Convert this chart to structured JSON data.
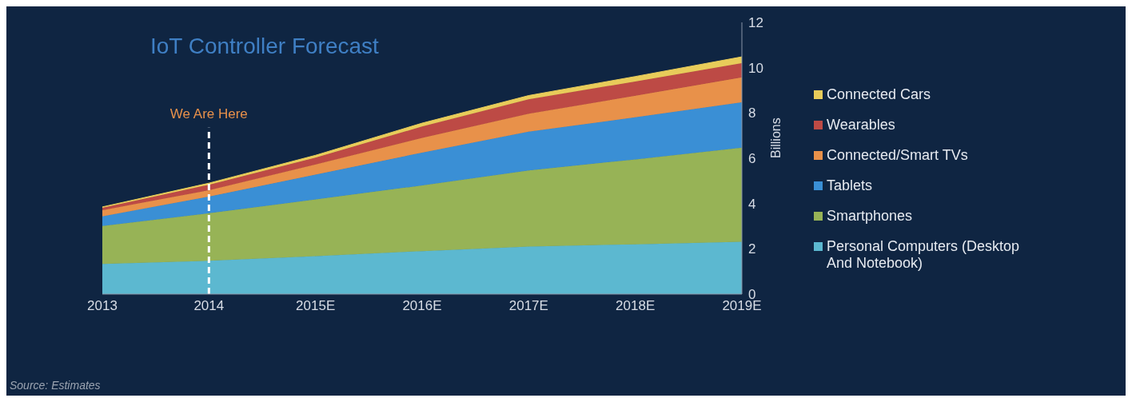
{
  "chart_data": {
    "type": "area",
    "title": "IoT Controller Forecast",
    "ylabel": "Billions",
    "stacked": true,
    "legend": "right",
    "grid": false,
    "categories": [
      "2013",
      "2014",
      "2015E",
      "2016E",
      "2017E",
      "2018E",
      "2019E"
    ],
    "ylim": [
      0,
      12
    ],
    "yticks": [
      0,
      2,
      4,
      6,
      8,
      10,
      12
    ],
    "series": [
      {
        "name": "Personal Computers (Desktop And Notebook)",
        "color": "#5cb8d0",
        "values": [
          1.33,
          1.47,
          1.68,
          1.9,
          2.1,
          2.2,
          2.31
        ]
      },
      {
        "name": "Smartphones",
        "color": "#97b356",
        "values": [
          1.68,
          2.1,
          2.5,
          2.9,
          3.36,
          3.75,
          4.16
        ]
      },
      {
        "name": "Tablets",
        "color": "#3a8fd5",
        "values": [
          0.42,
          0.74,
          1.1,
          1.45,
          1.71,
          1.86,
          2.0
        ]
      },
      {
        "name": "Connected/Smart TVs",
        "color": "#e8914a",
        "values": [
          0.28,
          0.28,
          0.45,
          0.65,
          0.8,
          0.95,
          1.1
        ]
      },
      {
        "name": "Wearables",
        "color": "#bd4a45",
        "values": [
          0.1,
          0.24,
          0.3,
          0.5,
          0.63,
          0.63,
          0.63
        ]
      },
      {
        "name": "Connected Cars",
        "color": "#e8cc5a",
        "values": [
          0.04,
          0.07,
          0.1,
          0.15,
          0.17,
          0.22,
          0.28
        ]
      }
    ],
    "ref_lines": [
      {
        "axis": "x",
        "value": "2014",
        "label": "We Are Here",
        "color": "#ffffff",
        "line_style": "dashed"
      }
    ],
    "annotations": [
      "Source: Estimates"
    ]
  }
}
